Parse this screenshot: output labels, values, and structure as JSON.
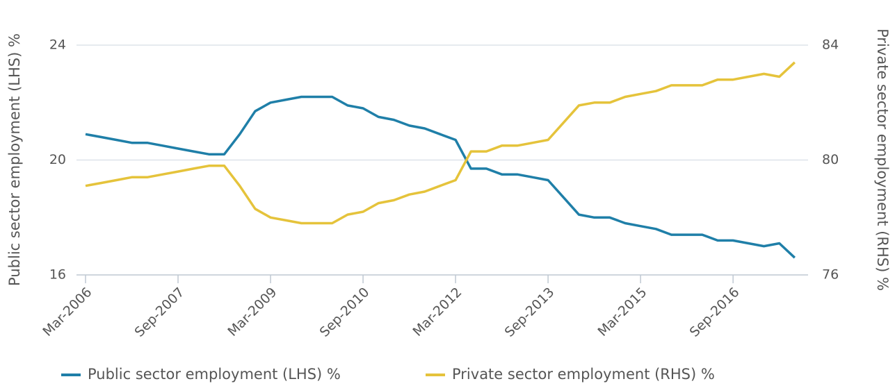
{
  "chart_data": {
    "type": "line",
    "ylabel": "Public sector employment (LHS) %",
    "y2label": "Private sector employment (RHS) %",
    "categories": [
      "Mar-2006",
      null,
      null,
      null,
      null,
      null,
      "Sep-2007",
      null,
      null,
      null,
      null,
      null,
      "Mar-2009",
      null,
      null,
      null,
      null,
      null,
      "Sep-2010",
      null,
      null,
      null,
      null,
      null,
      "Mar-2012",
      null,
      null,
      null,
      null,
      null,
      "Sep-2013",
      null,
      null,
      null,
      null,
      null,
      "Mar-2015",
      null,
      null,
      null,
      null,
      null,
      "Sep-2016",
      null,
      null,
      null,
      null
    ],
    "series": [
      {
        "name": "Public sector employment (LHS) %",
        "color": "#1f7fa8",
        "axis": "y",
        "values": [
          20.9,
          20.8,
          20.7,
          20.6,
          20.6,
          20.5,
          20.4,
          20.3,
          20.2,
          20.2,
          20.9,
          21.7,
          22.0,
          22.1,
          22.2,
          22.2,
          22.2,
          21.9,
          21.8,
          21.5,
          21.4,
          21.2,
          21.1,
          20.9,
          20.7,
          19.7,
          19.7,
          19.5,
          19.5,
          19.4,
          19.3,
          18.7,
          18.1,
          18.0,
          18.0,
          17.8,
          17.7,
          17.6,
          17.4,
          17.4,
          17.4,
          17.2,
          17.2,
          17.1,
          17.0,
          17.1,
          16.6
        ]
      },
      {
        "name": "Private sector employment (RHS) %",
        "color": "#e5c33b",
        "axis": "y2",
        "values": [
          79.1,
          79.2,
          79.3,
          79.4,
          79.4,
          79.5,
          79.6,
          79.7,
          79.8,
          79.8,
          79.1,
          78.3,
          78.0,
          77.9,
          77.8,
          77.8,
          77.8,
          78.1,
          78.2,
          78.5,
          78.6,
          78.8,
          78.9,
          79.1,
          79.3,
          80.3,
          80.3,
          80.5,
          80.5,
          80.6,
          80.7,
          81.3,
          81.9,
          82.0,
          82.0,
          82.2,
          82.3,
          82.4,
          82.6,
          82.6,
          82.6,
          82.8,
          82.8,
          82.9,
          83.0,
          82.9,
          83.4
        ]
      }
    ],
    "ylim": [
      16,
      24
    ],
    "yticks": [
      16,
      20,
      24
    ],
    "y2lim": [
      76,
      84
    ],
    "y2ticks": [
      76,
      80,
      84
    ],
    "grid": true
  }
}
